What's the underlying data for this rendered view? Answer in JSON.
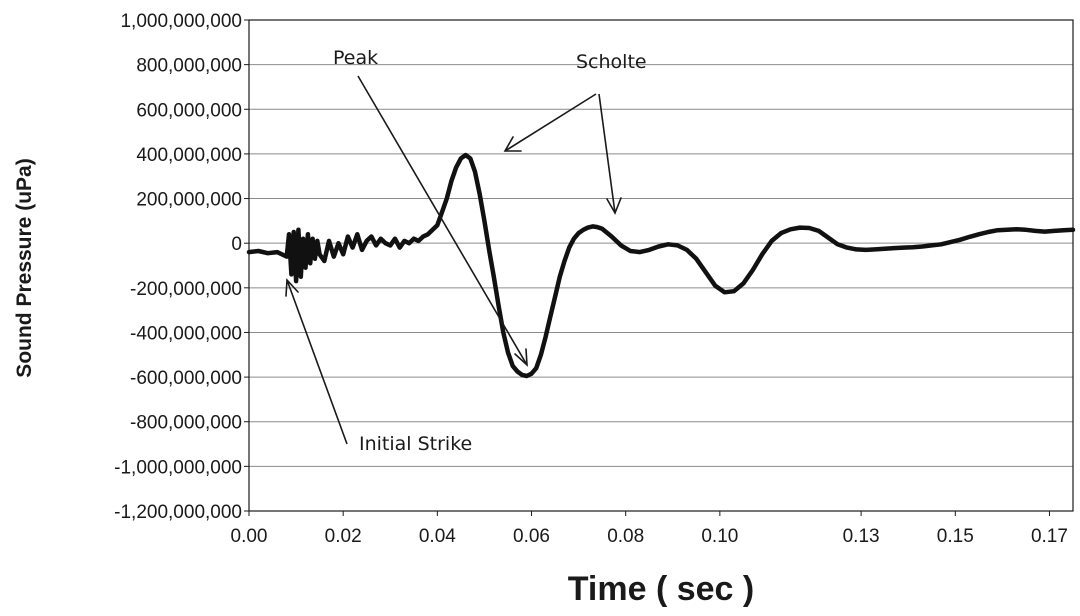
{
  "chart_data": {
    "type": "line",
    "title": "",
    "xlabel": "Time ( sec )",
    "ylabel": "Sound Pressure (uPa)",
    "xlim": [
      0.0,
      0.175
    ],
    "ylim": [
      -1200000000,
      1000000000
    ],
    "grid": true,
    "legend": "none",
    "x_tick_labels": [
      "0.00",
      "0.02",
      "0.04",
      "0.06",
      "0.08",
      "0.10",
      "0.13",
      "0.15",
      "0.17"
    ],
    "x_tick_values": [
      0.0,
      0.02,
      0.04,
      0.06,
      0.08,
      0.1,
      0.13,
      0.15,
      0.17
    ],
    "y_tick_labels": [
      "1,000,000,000",
      "800,000,000",
      "600,000,000",
      "400,000,000",
      "200,000,000",
      "0",
      "-200,000,000",
      "-400,000,000",
      "-600,000,000",
      "-800,000,000",
      "-1,000,000,000",
      "-1,200,000,000"
    ],
    "y_tick_values": [
      1000000000,
      800000000,
      600000000,
      400000000,
      200000000,
      0,
      -200000000,
      -400000000,
      -600000000,
      -800000000,
      -1000000000,
      -1200000000
    ],
    "series_color": "#111111",
    "series": [
      {
        "x": [
          0.0,
          0.002,
          0.004,
          0.006,
          0.008,
          0.0085,
          0.009,
          0.0095,
          0.01,
          0.0105,
          0.011,
          0.0115,
          0.012,
          0.0125,
          0.013,
          0.0135,
          0.014,
          0.0145,
          0.015,
          0.016,
          0.017,
          0.018,
          0.019,
          0.02,
          0.021,
          0.022,
          0.023,
          0.024,
          0.025,
          0.026,
          0.027,
          0.028,
          0.029,
          0.03,
          0.031,
          0.032,
          0.033,
          0.034,
          0.035,
          0.036,
          0.037,
          0.038,
          0.039,
          0.04,
          0.041,
          0.042,
          0.043,
          0.044,
          0.045,
          0.046,
          0.047,
          0.048,
          0.049,
          0.05,
          0.051,
          0.052,
          0.053,
          0.054,
          0.055,
          0.056,
          0.057,
          0.058,
          0.059,
          0.06,
          0.061,
          0.062,
          0.063,
          0.064,
          0.065,
          0.066,
          0.067,
          0.068,
          0.069,
          0.07,
          0.071,
          0.072,
          0.073,
          0.074,
          0.075,
          0.077,
          0.079,
          0.081,
          0.083,
          0.085,
          0.087,
          0.089,
          0.091,
          0.093,
          0.095,
          0.097,
          0.099,
          0.101,
          0.103,
          0.105,
          0.107,
          0.109,
          0.111,
          0.113,
          0.115,
          0.117,
          0.119,
          0.121,
          0.123,
          0.125,
          0.127,
          0.129,
          0.131,
          0.133,
          0.135,
          0.137,
          0.139,
          0.141,
          0.143,
          0.145,
          0.147,
          0.149,
          0.151,
          0.153,
          0.155,
          0.157,
          0.159,
          0.161,
          0.163,
          0.165,
          0.167,
          0.169,
          0.171,
          0.173,
          0.175
        ],
        "values": [
          -40000000,
          -35000000,
          -45000000,
          -40000000,
          -60000000,
          40000000,
          -140000000,
          50000000,
          -170000000,
          60000000,
          -150000000,
          20000000,
          -110000000,
          40000000,
          -90000000,
          20000000,
          -70000000,
          10000000,
          -50000000,
          -80000000,
          10000000,
          -60000000,
          0,
          -50000000,
          30000000,
          -20000000,
          40000000,
          -30000000,
          10000000,
          30000000,
          -10000000,
          20000000,
          0,
          -10000000,
          20000000,
          -20000000,
          10000000,
          0,
          20000000,
          10000000,
          30000000,
          40000000,
          60000000,
          80000000,
          140000000,
          200000000,
          280000000,
          340000000,
          380000000,
          395000000,
          380000000,
          320000000,
          220000000,
          100000000,
          -30000000,
          -150000000,
          -280000000,
          -400000000,
          -490000000,
          -550000000,
          -575000000,
          -590000000,
          -595000000,
          -585000000,
          -560000000,
          -500000000,
          -420000000,
          -330000000,
          -240000000,
          -150000000,
          -80000000,
          -20000000,
          20000000,
          45000000,
          60000000,
          70000000,
          75000000,
          72000000,
          65000000,
          30000000,
          -10000000,
          -35000000,
          -40000000,
          -30000000,
          -15000000,
          -5000000,
          -10000000,
          -30000000,
          -70000000,
          -130000000,
          -190000000,
          -220000000,
          -215000000,
          -180000000,
          -120000000,
          -50000000,
          10000000,
          45000000,
          62000000,
          70000000,
          68000000,
          55000000,
          25000000,
          -5000000,
          -20000000,
          -28000000,
          -30000000,
          -28000000,
          -25000000,
          -22000000,
          -20000000,
          -18000000,
          -15000000,
          -10000000,
          -5000000,
          5000000,
          15000000,
          28000000,
          40000000,
          50000000,
          58000000,
          60000000,
          62000000,
          60000000,
          55000000,
          52000000,
          55000000,
          58000000,
          60000000
        ]
      }
    ],
    "annotations": [
      {
        "text": "Peak"
      },
      {
        "text": "Scholte"
      },
      {
        "text": "Initial Strike"
      }
    ]
  }
}
